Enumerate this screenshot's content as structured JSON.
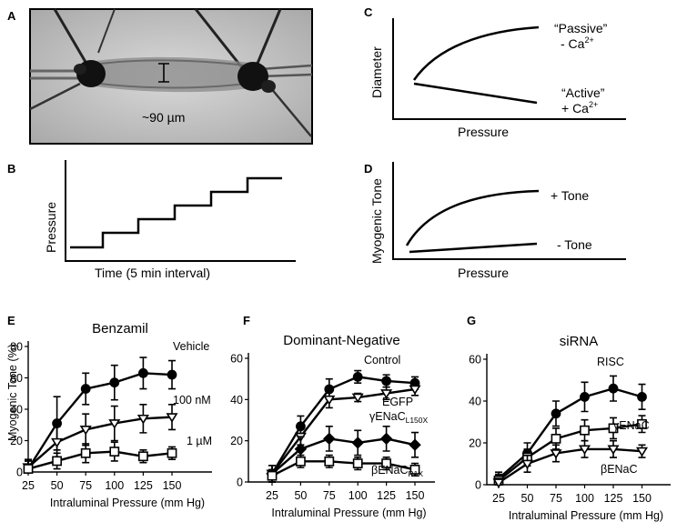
{
  "figure": {
    "panel_labels": {
      "a": "A",
      "b": "B",
      "c": "C",
      "d": "D",
      "e": "E",
      "f": "F",
      "g": "G"
    },
    "a": {
      "scale_label": "~90 µm"
    },
    "b": {
      "ylabel": "Pressure",
      "xlabel": "Time (5 min interval)"
    },
    "c": {
      "ylabel": "Diameter",
      "xlabel": "Pressure",
      "passive_1": "“Passive”",
      "passive_2": "- Ca",
      "active_1": "“Active”",
      "active_2": "+ Ca",
      "ion_sup": "2+"
    },
    "d": {
      "ylabel": "Myogenic Tone",
      "xlabel": "Pressure",
      "plus_tone": "+ Tone",
      "minus_tone": "- Tone"
    },
    "e": {
      "ylabel": "Myogenic Tone (%)"
    }
  },
  "chart_data": [
    {
      "panel": "E",
      "type": "line",
      "title": "Benzamil",
      "xlabel": "Intraluminal Pressure (mm Hg)",
      "ylabel": "Myogenic Tone (%)",
      "x": [
        25,
        50,
        75,
        100,
        125,
        150
      ],
      "xticks": [
        "25",
        "50",
        "75",
        "100",
        "125",
        "150"
      ],
      "ylim": [
        0,
        80
      ],
      "yticks": [
        "0",
        "20",
        "40",
        "60",
        "80"
      ],
      "series": [
        {
          "name": "Vehicle",
          "marker": "circle",
          "values": [
            2,
            31,
            53,
            57,
            63,
            62
          ],
          "errors": [
            5,
            17,
            10,
            11,
            10,
            9
          ]
        },
        {
          "name": "100 nM",
          "marker": "triangle",
          "values": [
            3,
            19,
            27,
            31,
            34,
            35
          ],
          "errors": [
            5,
            10,
            10,
            11,
            9,
            8
          ]
        },
        {
          "name": "1 µM",
          "marker": "square",
          "values": [
            2,
            7,
            12,
            13,
            10,
            12
          ],
          "errors": [
            5,
            5,
            6,
            6,
            4,
            4
          ]
        }
      ]
    },
    {
      "panel": "F",
      "type": "line",
      "title": "Dominant-Negative",
      "xlabel": "Intraluminal Pressure (mm Hg)",
      "x": [
        25,
        50,
        75,
        100,
        125,
        150
      ],
      "xticks": [
        "25",
        "50",
        "75",
        "100",
        "125",
        "150"
      ],
      "ylim": [
        0,
        60
      ],
      "yticks": [
        "0",
        "20",
        "40",
        "60"
      ],
      "series": [
        {
          "name": "Control",
          "marker": "circle",
          "values": [
            4,
            27,
            45,
            51,
            49,
            48
          ],
          "errors": [
            4,
            5,
            5,
            3,
            3,
            3
          ]
        },
        {
          "name": "EGFP",
          "marker": "triangle",
          "values": [
            4,
            22,
            40,
            41,
            43,
            45
          ],
          "errors": [
            4,
            4,
            4,
            2,
            3,
            3
          ]
        },
        {
          "name": "γENaC",
          "sub": "L150X",
          "marker": "diamond",
          "values": [
            4,
            16,
            21,
            19,
            21,
            18
          ],
          "errors": [
            4,
            6,
            6,
            6,
            6,
            6
          ]
        },
        {
          "name": "βENaC",
          "sub": "R1X",
          "marker": "square",
          "values": [
            3,
            10,
            10,
            9,
            9,
            6
          ],
          "errors": [
            3,
            3,
            3,
            3,
            3,
            3
          ]
        }
      ]
    },
    {
      "panel": "G",
      "type": "line",
      "title": "siRNA",
      "xlabel": "Intraluminal Pressure (mm Hg)",
      "x": [
        25,
        50,
        75,
        100,
        125,
        150
      ],
      "xticks": [
        "25",
        "50",
        "75",
        "100",
        "125",
        "150"
      ],
      "ylim": [
        0,
        60
      ],
      "yticks": [
        "0",
        "20",
        "40",
        "60"
      ],
      "series": [
        {
          "name": "RISC",
          "marker": "circle",
          "values": [
            3,
            15,
            34,
            42,
            46,
            42
          ],
          "errors": [
            3,
            5,
            6,
            7,
            6,
            6
          ]
        },
        {
          "name": "γENaC",
          "marker": "square",
          "values": [
            2,
            13,
            22,
            26,
            27,
            29
          ],
          "errors": [
            3,
            4,
            5,
            5,
            5,
            4
          ]
        },
        {
          "name": "βENaC",
          "marker": "triangle",
          "values": [
            1,
            10,
            15,
            17,
            17,
            16
          ],
          "errors": [
            2,
            4,
            4,
            4,
            4,
            3
          ]
        }
      ]
    }
  ]
}
